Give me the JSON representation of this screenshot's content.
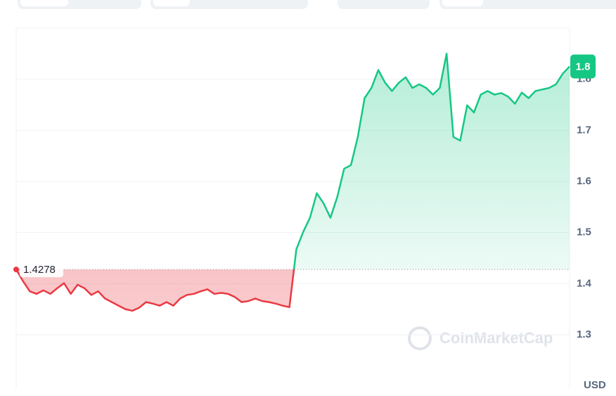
{
  "chart_data": {
    "type": "line",
    "values": [
      1.428,
      1.405,
      1.385,
      1.38,
      1.387,
      1.38,
      1.391,
      1.401,
      1.38,
      1.398,
      1.391,
      1.378,
      1.385,
      1.371,
      1.364,
      1.357,
      1.35,
      1.347,
      1.353,
      1.364,
      1.361,
      1.357,
      1.364,
      1.357,
      1.371,
      1.378,
      1.38,
      1.385,
      1.389,
      1.38,
      1.382,
      1.38,
      1.374,
      1.364,
      1.366,
      1.371,
      1.366,
      1.364,
      1.361,
      1.357,
      1.354,
      1.467,
      1.501,
      1.529,
      1.577,
      1.557,
      1.529,
      1.57,
      1.625,
      1.632,
      1.687,
      1.763,
      1.783,
      1.818,
      1.793,
      1.777,
      1.793,
      1.804,
      1.783,
      1.79,
      1.783,
      1.77,
      1.783,
      1.85,
      1.687,
      1.68,
      1.749,
      1.735,
      1.77,
      1.777,
      1.77,
      1.773,
      1.766,
      1.752,
      1.774,
      1.763,
      1.777,
      1.78,
      1.783,
      1.79,
      1.811,
      1.825
    ],
    "up_color": "#16c784",
    "down_color": "#ea3943",
    "baseline": 1.4278,
    "last_price": 1.8,
    "ylim": [
      1.194,
      1.9
    ],
    "yticks": [
      1.3,
      1.4,
      1.5,
      1.6,
      1.7,
      1.8
    ],
    "grid": true,
    "unit": "USD",
    "watermark": "CoinMarketCap"
  }
}
